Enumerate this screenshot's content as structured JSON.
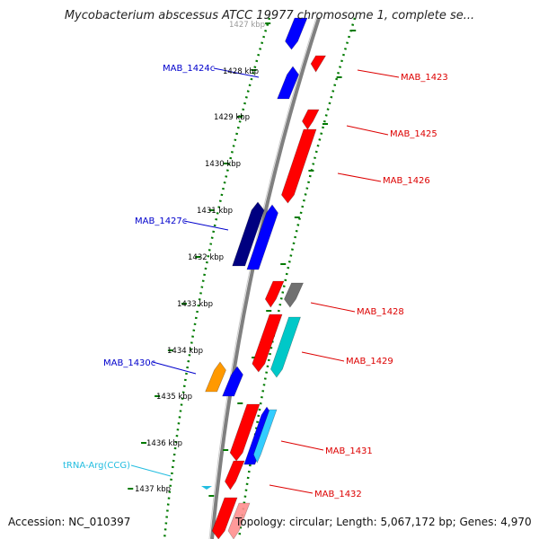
{
  "title": "Mycobacterium abscessus ATCC 19977 chromosome 1, complete se...",
  "accession": "Accession: NC_010397",
  "summary": "Topology: circular; Length: 5,067,172 bp; Genes: 4,970",
  "colors": {
    "forward": "#ff0000",
    "reverse": "#0000ff",
    "reverse_dark": "#000080",
    "grey": "#707070",
    "cyan": "#00c8c8",
    "orange": "#ff9900",
    "trna": "#22bde0",
    "backbone": "#808080",
    "ticks": "#007a00"
  },
  "ticks": [
    "1427 kbp",
    "1428 kbp",
    "1429 kbp",
    "1430 kbp",
    "1431 kbp",
    "1432 kbp",
    "1433 kbp",
    "1434 kbp",
    "1435 kbp",
    "1436 kbp",
    "1437 kbp"
  ],
  "labels_left": [
    {
      "text": "MAB_1424c",
      "color": "#0000cc"
    },
    {
      "text": "MAB_1427c",
      "color": "#0000cc"
    },
    {
      "text": "MAB_1430c",
      "color": "#0000cc"
    },
    {
      "text": "tRNA-Arg(CCG)",
      "color": "#22bde0"
    }
  ],
  "labels_right": [
    {
      "text": "MAB_1423",
      "color": "#dd0000"
    },
    {
      "text": "MAB_1425",
      "color": "#dd0000"
    },
    {
      "text": "MAB_1426",
      "color": "#dd0000"
    },
    {
      "text": "MAB_1428",
      "color": "#dd0000"
    },
    {
      "text": "MAB_1429",
      "color": "#dd0000"
    },
    {
      "text": "MAB_1431",
      "color": "#dd0000"
    },
    {
      "text": "MAB_1432",
      "color": "#dd0000"
    }
  ]
}
